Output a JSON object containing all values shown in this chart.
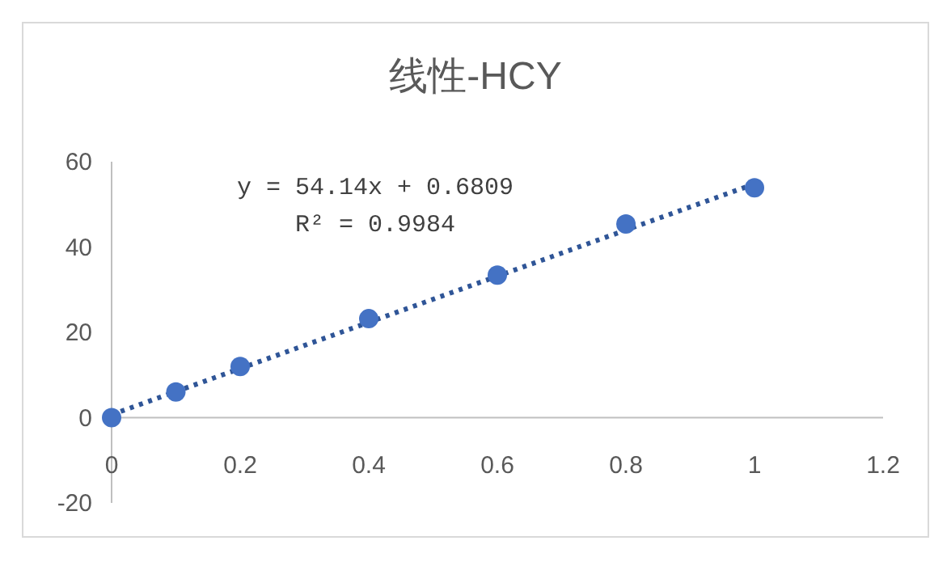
{
  "chart_data": {
    "type": "scatter",
    "title": "线性-HCY",
    "xlim": [
      0,
      1.2
    ],
    "xticks": [
      0,
      0.2,
      0.4,
      0.6,
      0.8,
      1,
      1.2
    ],
    "ylim": [
      -20,
      60
    ],
    "yticks": [
      -20,
      0,
      20,
      40,
      60
    ],
    "grid": false,
    "series": [
      {
        "color": "#4472c4",
        "marker": "circle",
        "x": [
          0,
          0.1,
          0.2,
          0.4,
          0.6,
          0.8,
          1
        ],
        "values": [
          0,
          6,
          12,
          23.2,
          33.4,
          45.4,
          53.9
        ]
      },
      {
        "type": "line",
        "color": "#2f5597",
        "line_style": "dotted",
        "x": [
          0,
          1
        ],
        "values": [
          0.7,
          54.8
        ]
      }
    ],
    "annotations": [
      "y = 54.14x + 0.6809",
      "R² = 0.9984"
    ]
  }
}
